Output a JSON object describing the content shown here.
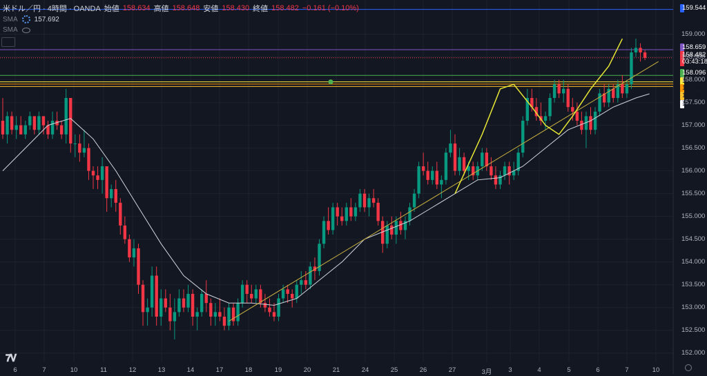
{
  "header": {
    "symbol": "米ドル／円 · 4時間 · OANDA",
    "open_label": "始値",
    "open": "158.634",
    "high_label": "高値",
    "high": "158.648",
    "low_label": "安値",
    "low": "158.430",
    "close_label": "終値",
    "close": "158.482",
    "change": "−0.161 (−0.10%)"
  },
  "indicators": [
    {
      "name": "SMA",
      "value": "157.692"
    },
    {
      "name": "SMA",
      "value": ""
    }
  ],
  "price_labels": [
    {
      "text": "159.544",
      "bg": "#2962ff",
      "fg": "#ffffff"
    },
    {
      "text": "158.659",
      "bg": "#7e57c2",
      "fg": "#ffffff"
    },
    {
      "text": "158.482",
      "bg": "#f23645",
      "fg": "#ffffff"
    },
    {
      "text": "03:43:18",
      "bg": "#f23645",
      "fg": "#ffffff"
    },
    {
      "text": "158.096",
      "bg": "#4caf50",
      "fg": "#ffffff"
    },
    {
      "text": "157.954",
      "bg": "#ffeb3b",
      "fg": "#131722"
    },
    {
      "text": "157.904",
      "bg": "#ff9800",
      "fg": "#131722"
    },
    {
      "text": "157.851",
      "bg": "#fbc02d",
      "fg": "#131722"
    },
    {
      "text": "157.692",
      "bg": "#ffffff",
      "fg": "#131722"
    }
  ],
  "chart_data": {
    "type": "candlestick",
    "y_range": [
      151.8,
      159.75
    ],
    "y_ticks": [
      "159.000",
      "158.500",
      "158.000",
      "157.500",
      "157.000",
      "156.500",
      "156.000",
      "155.500",
      "155.000",
      "154.500",
      "154.000",
      "153.500",
      "153.000",
      "152.500",
      "152.000"
    ],
    "x_ticks": [
      "6",
      "7",
      "10",
      "11",
      "12",
      "13",
      "14",
      "17",
      "18",
      "19",
      "20",
      "21",
      "24",
      "25",
      "26",
      "27",
      "3月",
      "3",
      "4",
      "5",
      "6",
      "7",
      "10"
    ],
    "colors": {
      "up": "#089981",
      "down": "#f23645",
      "sma": "#d1d4dc",
      "trendline": "#c8b040",
      "marker": "#e6e634"
    },
    "candles": [
      [
        157.1,
        157.6,
        156.7,
        156.8
      ],
      [
        156.8,
        157.3,
        156.6,
        157.2
      ],
      [
        157.2,
        157.3,
        156.8,
        156.9
      ],
      [
        156.9,
        157.2,
        156.7,
        157.0
      ],
      [
        157.0,
        157.2,
        156.8,
        156.8
      ],
      [
        156.8,
        157.1,
        156.7,
        157.0
      ],
      [
        157.0,
        157.3,
        156.9,
        157.2
      ],
      [
        157.2,
        157.2,
        156.8,
        156.9
      ],
      [
        156.9,
        157.3,
        156.8,
        157.2
      ],
      [
        157.2,
        157.2,
        156.8,
        157.0
      ],
      [
        157.0,
        157.1,
        156.7,
        156.8
      ],
      [
        156.8,
        157.3,
        156.7,
        157.1
      ],
      [
        157.1,
        157.3,
        156.9,
        157.0
      ],
      [
        157.0,
        157.1,
        156.7,
        156.8
      ],
      [
        156.8,
        157.8,
        156.6,
        157.6
      ],
      [
        157.6,
        157.6,
        156.4,
        156.6
      ],
      [
        156.6,
        156.8,
        156.3,
        156.6
      ],
      [
        156.6,
        156.8,
        156.2,
        156.4
      ],
      [
        156.4,
        156.9,
        156.3,
        156.5
      ],
      [
        156.5,
        156.6,
        155.8,
        156.0
      ],
      [
        156.0,
        156.1,
        155.6,
        155.9
      ],
      [
        155.9,
        156.1,
        155.6,
        155.8
      ],
      [
        155.8,
        156.3,
        155.5,
        156.1
      ],
      [
        156.1,
        156.1,
        155.1,
        155.4
      ],
      [
        155.4,
        155.7,
        155.2,
        155.6
      ],
      [
        155.6,
        155.8,
        155.1,
        155.3
      ],
      [
        155.3,
        155.4,
        154.6,
        154.8
      ],
      [
        154.8,
        155.0,
        154.4,
        154.5
      ],
      [
        154.5,
        154.6,
        154.0,
        154.1
      ],
      [
        154.1,
        154.5,
        153.9,
        154.3
      ],
      [
        154.3,
        154.4,
        153.3,
        153.5
      ],
      [
        153.5,
        153.6,
        152.6,
        152.9
      ],
      [
        152.9,
        153.2,
        152.6,
        153.0
      ],
      [
        153.0,
        153.9,
        152.8,
        153.7
      ],
      [
        153.7,
        153.9,
        152.6,
        152.8
      ],
      [
        152.8,
        153.4,
        152.6,
        153.2
      ],
      [
        153.2,
        153.4,
        152.9,
        153.0
      ],
      [
        153.0,
        153.3,
        152.5,
        152.7
      ],
      [
        152.7,
        153.2,
        152.3,
        152.9
      ],
      [
        152.9,
        153.4,
        152.8,
        153.2
      ],
      [
        153.2,
        153.4,
        152.9,
        153.0
      ],
      [
        153.0,
        153.5,
        152.9,
        153.3
      ],
      [
        153.3,
        153.4,
        152.6,
        152.8
      ],
      [
        152.8,
        153.0,
        152.5,
        152.9
      ],
      [
        152.9,
        153.4,
        152.8,
        153.3
      ],
      [
        153.3,
        153.6,
        152.9,
        153.1
      ],
      [
        153.1,
        153.2,
        152.6,
        152.8
      ],
      [
        152.8,
        153.1,
        152.6,
        152.9
      ],
      [
        152.9,
        153.2,
        152.7,
        152.8
      ],
      [
        152.8,
        153.0,
        152.5,
        152.6
      ],
      [
        152.6,
        153.1,
        152.5,
        153.0
      ],
      [
        153.0,
        153.1,
        152.6,
        152.7
      ],
      [
        152.7,
        153.2,
        152.6,
        153.1
      ],
      [
        153.1,
        153.6,
        153.0,
        153.5
      ],
      [
        153.5,
        153.6,
        153.1,
        153.3
      ],
      [
        153.3,
        153.5,
        153.1,
        153.2
      ],
      [
        153.2,
        153.5,
        153.1,
        153.4
      ],
      [
        153.4,
        153.5,
        153.0,
        153.1
      ],
      [
        153.1,
        153.3,
        152.9,
        153.0
      ],
      [
        153.0,
        153.2,
        152.8,
        152.9
      ],
      [
        152.9,
        153.1,
        152.7,
        152.8
      ],
      [
        152.8,
        153.3,
        152.7,
        153.2
      ],
      [
        153.2,
        153.5,
        153.1,
        153.4
      ],
      [
        153.4,
        153.5,
        153.1,
        153.3
      ],
      [
        153.3,
        153.4,
        153.0,
        153.2
      ],
      [
        153.2,
        153.6,
        153.1,
        153.5
      ],
      [
        153.5,
        153.8,
        153.3,
        153.6
      ],
      [
        153.6,
        153.8,
        153.4,
        153.5
      ],
      [
        153.5,
        154.0,
        153.4,
        153.9
      ],
      [
        153.9,
        154.1,
        153.6,
        153.8
      ],
      [
        153.8,
        154.5,
        153.7,
        154.4
      ],
      [
        154.4,
        155.0,
        154.3,
        154.9
      ],
      [
        154.9,
        155.2,
        154.6,
        154.7
      ],
      [
        154.7,
        155.3,
        154.6,
        155.2
      ],
      [
        155.2,
        155.3,
        154.8,
        155.0
      ],
      [
        155.0,
        155.2,
        154.8,
        154.9
      ],
      [
        154.9,
        155.3,
        154.8,
        155.2
      ],
      [
        155.2,
        155.4,
        154.9,
        155.0
      ],
      [
        155.0,
        155.3,
        154.9,
        155.2
      ],
      [
        155.2,
        155.6,
        155.1,
        155.5
      ],
      [
        155.5,
        155.6,
        155.1,
        155.2
      ],
      [
        155.2,
        155.5,
        155.0,
        155.4
      ],
      [
        155.4,
        155.6,
        155.2,
        155.3
      ],
      [
        155.3,
        155.4,
        154.8,
        154.9
      ],
      [
        154.9,
        155.0,
        154.2,
        154.4
      ],
      [
        154.4,
        154.9,
        154.3,
        154.8
      ],
      [
        154.8,
        155.0,
        154.5,
        154.6
      ],
      [
        154.6,
        155.0,
        154.4,
        154.9
      ],
      [
        154.9,
        155.1,
        154.6,
        154.7
      ],
      [
        154.7,
        155.0,
        154.5,
        154.9
      ],
      [
        154.9,
        155.3,
        154.8,
        155.2
      ],
      [
        155.2,
        155.6,
        155.1,
        155.5
      ],
      [
        155.5,
        156.2,
        155.4,
        156.1
      ],
      [
        156.1,
        156.4,
        155.9,
        156.0
      ],
      [
        156.0,
        156.2,
        155.7,
        155.8
      ],
      [
        155.8,
        156.1,
        155.7,
        156.0
      ],
      [
        156.0,
        156.2,
        155.6,
        155.7
      ],
      [
        155.7,
        155.9,
        155.4,
        155.8
      ],
      [
        155.8,
        156.5,
        155.7,
        156.4
      ],
      [
        156.4,
        156.9,
        156.3,
        156.6
      ],
      [
        156.6,
        156.8,
        155.9,
        156.0
      ],
      [
        156.0,
        156.5,
        155.9,
        156.3
      ],
      [
        156.3,
        156.4,
        155.9,
        156.0
      ],
      [
        156.0,
        156.2,
        155.8,
        156.1
      ],
      [
        156.1,
        156.2,
        155.8,
        155.9
      ],
      [
        155.9,
        156.2,
        155.8,
        156.1
      ],
      [
        156.1,
        156.5,
        156.0,
        156.4
      ],
      [
        156.4,
        156.5,
        156.0,
        156.1
      ],
      [
        156.1,
        156.3,
        155.8,
        155.9
      ],
      [
        155.9,
        156.1,
        155.6,
        155.7
      ],
      [
        155.7,
        156.0,
        155.6,
        155.9
      ],
      [
        155.9,
        156.2,
        155.8,
        156.1
      ],
      [
        156.1,
        156.2,
        155.7,
        155.9
      ],
      [
        155.9,
        156.2,
        155.8,
        156.0
      ],
      [
        156.0,
        156.5,
        155.9,
        156.4
      ],
      [
        156.4,
        157.2,
        156.3,
        157.1
      ],
      [
        157.1,
        157.8,
        157.0,
        157.6
      ],
      [
        157.6,
        157.8,
        157.3,
        157.4
      ],
      [
        157.4,
        157.6,
        157.1,
        157.2
      ],
      [
        157.2,
        157.5,
        157.0,
        157.1
      ],
      [
        157.1,
        157.3,
        156.9,
        157.2
      ],
      [
        157.2,
        157.7,
        157.1,
        157.6
      ],
      [
        157.6,
        158.0,
        157.5,
        157.9
      ],
      [
        157.9,
        158.0,
        157.6,
        157.7
      ],
      [
        157.7,
        158.0,
        157.5,
        157.8
      ],
      [
        157.8,
        157.9,
        157.3,
        157.4
      ],
      [
        157.4,
        157.6,
        157.1,
        157.3
      ],
      [
        157.3,
        157.5,
        157.0,
        157.1
      ],
      [
        157.1,
        157.3,
        156.8,
        156.9
      ],
      [
        156.9,
        157.3,
        156.5,
        157.2
      ],
      [
        157.2,
        157.4,
        156.8,
        156.9
      ],
      [
        156.9,
        157.4,
        156.8,
        157.3
      ],
      [
        157.3,
        157.8,
        157.2,
        157.7
      ],
      [
        157.7,
        157.9,
        157.4,
        157.5
      ],
      [
        157.5,
        157.9,
        157.4,
        157.8
      ],
      [
        157.8,
        157.9,
        157.5,
        157.6
      ],
      [
        157.6,
        158.0,
        157.5,
        157.9
      ],
      [
        157.9,
        158.1,
        157.6,
        157.7
      ],
      [
        157.7,
        158.0,
        157.6,
        157.9
      ],
      [
        157.9,
        158.7,
        157.8,
        158.6
      ],
      [
        158.6,
        158.9,
        158.5,
        158.7
      ],
      [
        158.7,
        158.8,
        158.4,
        158.6
      ],
      [
        158.6,
        158.65,
        158.43,
        158.48
      ]
    ],
    "sma": [
      [
        0,
        156.0
      ],
      [
        5,
        156.5
      ],
      [
        10,
        157.0
      ],
      [
        15,
        157.15
      ],
      [
        20,
        156.7
      ],
      [
        25,
        156.0
      ],
      [
        30,
        155.2
      ],
      [
        35,
        154.4
      ],
      [
        40,
        153.7
      ],
      [
        45,
        153.3
      ],
      [
        50,
        153.1
      ],
      [
        55,
        153.1
      ],
      [
        60,
        153.05
      ],
      [
        65,
        153.2
      ],
      [
        70,
        153.6
      ],
      [
        75,
        154.0
      ],
      [
        80,
        154.5
      ],
      [
        85,
        154.7
      ],
      [
        90,
        154.9
      ],
      [
        95,
        155.2
      ],
      [
        100,
        155.5
      ],
      [
        105,
        155.8
      ],
      [
        110,
        155.85
      ],
      [
        115,
        156.1
      ],
      [
        120,
        156.5
      ],
      [
        125,
        156.9
      ],
      [
        130,
        157.1
      ],
      [
        135,
        157.4
      ],
      [
        140,
        157.6
      ],
      [
        143,
        157.69
      ]
    ],
    "trendline": [
      [
        50,
        152.7
      ],
      [
        145,
        158.4
      ]
    ],
    "horizontal_levels": [
      {
        "y": 159.544,
        "color": "#2962ff"
      },
      {
        "y": 158.659,
        "color": "#7e57c2"
      },
      {
        "y": 158.482,
        "color": "#f23645",
        "dashed": true
      },
      {
        "y": 158.096,
        "color": "#4caf50"
      },
      {
        "y": 157.954,
        "color": "#ffeb3b"
      },
      {
        "y": 157.904,
        "color": "#ff9800"
      },
      {
        "y": 157.851,
        "color": "#fbc02d"
      }
    ],
    "highlight_path": [
      [
        100,
        155.5
      ],
      [
        106,
        156.8
      ],
      [
        110,
        157.8
      ],
      [
        113,
        157.9
      ],
      [
        117,
        157.4
      ],
      [
        120,
        157.0
      ],
      [
        123,
        156.8
      ],
      [
        126,
        157.2
      ],
      [
        130,
        157.8
      ],
      [
        134,
        158.3
      ],
      [
        137,
        158.9
      ]
    ]
  }
}
